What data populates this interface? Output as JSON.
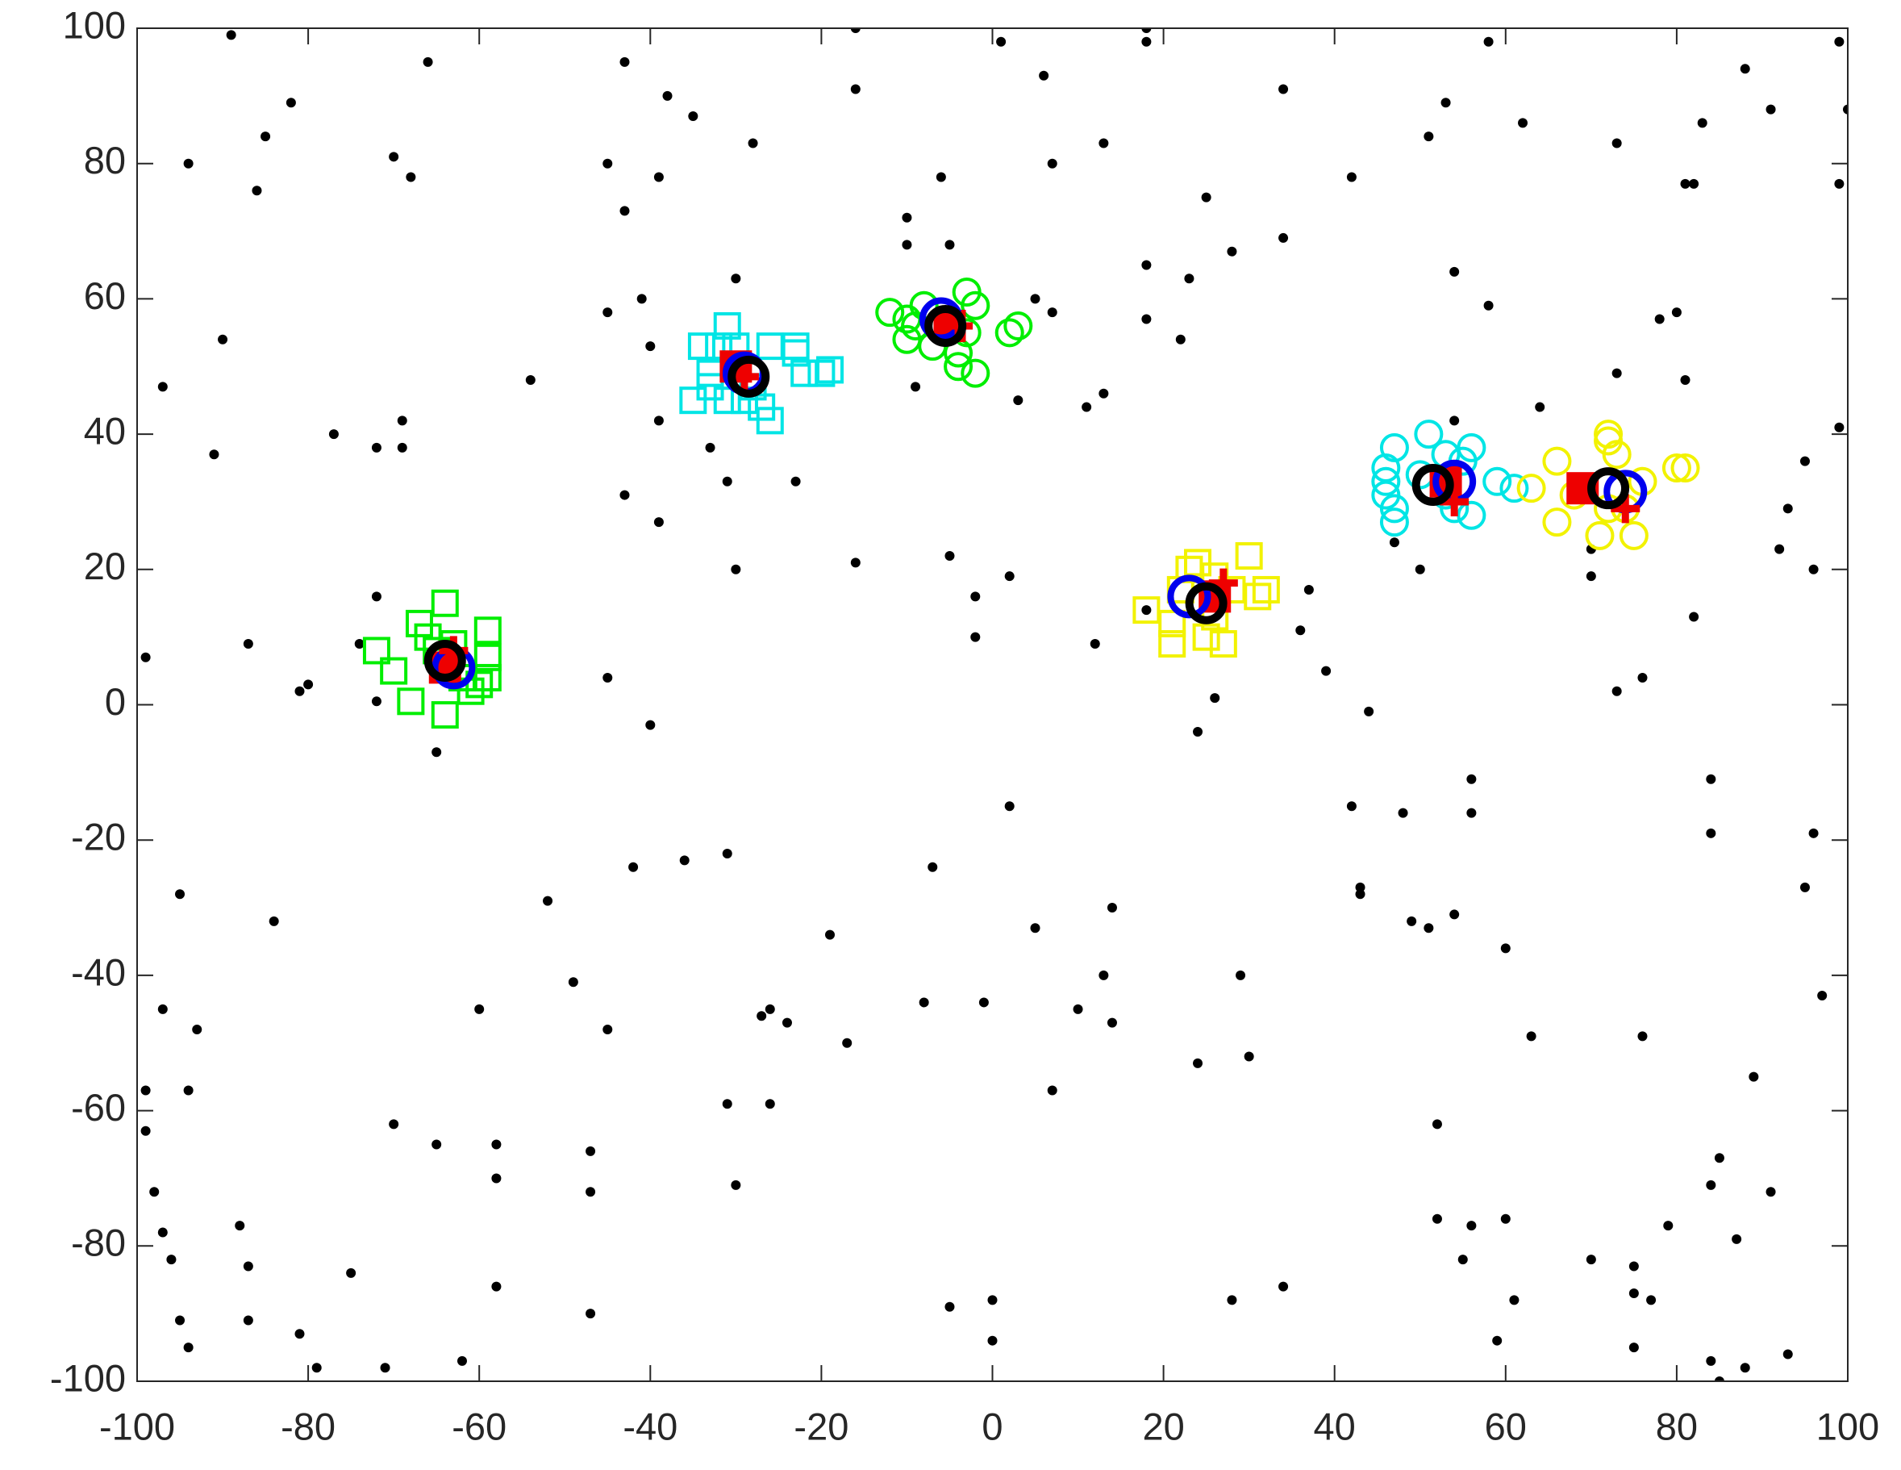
{
  "chart_data": {
    "type": "scatter",
    "xlim": [
      -100,
      100
    ],
    "ylim": [
      -100,
      100
    ],
    "xticks": [
      -100,
      -80,
      -60,
      -40,
      -20,
      0,
      20,
      40,
      60,
      80,
      100
    ],
    "yticks": [
      -100,
      -80,
      -60,
      -40,
      -20,
      0,
      20,
      40,
      60,
      80,
      100
    ],
    "grid": false,
    "series": [
      {
        "color": "#000000",
        "marker": "dot",
        "x": [
          -89,
          -66,
          -94,
          -82,
          -85,
          -86,
          -70,
          -68,
          -90,
          -97,
          -91,
          -77,
          -72,
          -69,
          -69,
          -99,
          -72,
          -87,
          -81,
          -80,
          -74,
          -72,
          -65,
          -60,
          -58,
          -58,
          -58,
          -62,
          -65,
          -70,
          -75,
          -71,
          -79,
          -81,
          -87,
          -87,
          -88,
          -94,
          -95,
          -96,
          -97,
          -98,
          -99,
          -99,
          -94,
          -93,
          -97,
          -95,
          -84,
          -45,
          -43,
          -38,
          -35,
          -43,
          -39,
          -28,
          -41,
          -45,
          -40,
          -39,
          -43,
          -39,
          -33,
          -31,
          -30,
          -30,
          -54,
          -45,
          -40,
          -42,
          -36,
          -31,
          -52,
          -49,
          -45,
          -47,
          -47,
          -47,
          -31,
          -30,
          -26,
          -26,
          -27,
          -24,
          -19,
          -17,
          -16,
          -23,
          -16,
          -16,
          -10,
          -10,
          -6,
          -5,
          1,
          6,
          7,
          13,
          18,
          18,
          25,
          18,
          18,
          23,
          22,
          28,
          11,
          13,
          5,
          7,
          3,
          -9,
          -5,
          -2,
          -2,
          2,
          12,
          -5,
          0,
          0,
          -1,
          -8,
          -7,
          2,
          5,
          7,
          10,
          13,
          14,
          14,
          18,
          24,
          26,
          28,
          29,
          30,
          24,
          34,
          34,
          34,
          36,
          37,
          39,
          42,
          42,
          43,
          43,
          44,
          48,
          49,
          51,
          54,
          56,
          56,
          52,
          52,
          55,
          56,
          60,
          61,
          60,
          59,
          63,
          70,
          75,
          75,
          77,
          75,
          76,
          79,
          84,
          85,
          87,
          89,
          91,
          93,
          84,
          85,
          88,
          84,
          84,
          95,
          96,
          97,
          96,
          93,
          92,
          95,
          99,
          99,
          99,
          100,
          91,
          88,
          83,
          81,
          82,
          80,
          81,
          78,
          82,
          76,
          73,
          73,
          73,
          62,
          58,
          58,
          54,
          53,
          51,
          50,
          47,
          54,
          70,
          70,
          64
        ],
        "y": [
          99,
          95,
          80,
          89,
          84,
          76,
          81,
          78,
          54,
          47,
          37,
          40,
          38,
          38,
          42,
          7,
          16,
          9,
          2,
          3,
          9,
          0.5,
          -7,
          -45,
          -65,
          -70,
          -86,
          -97,
          -65,
          -62,
          -84,
          -98,
          -98,
          -93,
          -91,
          -83,
          -77,
          -95,
          -91,
          -82,
          -78,
          -72,
          -63,
          -57,
          -57,
          -48,
          -45,
          -28,
          -32,
          80,
          95,
          90,
          87,
          73,
          78,
          83,
          60,
          58,
          53,
          42,
          31,
          27,
          38,
          33,
          63,
          20,
          48,
          4,
          -3,
          -24,
          -23,
          -22,
          -29,
          -41,
          -48,
          -66,
          -72,
          -90,
          -59,
          -71,
          -59,
          -45,
          -46,
          -47,
          -34,
          -50,
          21,
          33,
          91,
          100,
          72,
          68,
          78,
          68,
          98,
          93,
          80,
          83,
          100,
          98,
          75,
          65,
          57,
          63,
          54,
          67,
          44,
          46,
          60,
          58,
          45,
          47,
          22,
          16,
          10,
          19,
          9,
          -89,
          -88,
          -94,
          -44,
          -44,
          -24,
          -15,
          -33,
          -57,
          -45,
          -40,
          -30,
          -47,
          14,
          -4,
          1,
          -88,
          -40,
          -52,
          -53,
          -86,
          91,
          69,
          11,
          17,
          5,
          78,
          -15,
          -27,
          -28,
          -1,
          -16,
          -32,
          -33,
          -31,
          -11,
          -16,
          -62,
          -76,
          -82,
          -77,
          -76,
          -88,
          -36,
          -94,
          -49,
          -82,
          -83,
          -87,
          -88,
          -95,
          -49,
          -77,
          -71,
          -67,
          -79,
          -55,
          -72,
          -96,
          -97,
          -100,
          -98,
          -19,
          -11,
          -27,
          -19,
          -43,
          20,
          29,
          23,
          36,
          41,
          77,
          98,
          88,
          88,
          94,
          86,
          77,
          77,
          58,
          48,
          57,
          13,
          4,
          2,
          49,
          83,
          86,
          98,
          59,
          64,
          89,
          84,
          20,
          24,
          42,
          19,
          23,
          44
        ]
      },
      {
        "color": "#00ee00",
        "marker": "square",
        "x": [
          -72,
          -70,
          -67,
          -66,
          -64,
          -68,
          -64,
          -59,
          -59,
          -59,
          -60,
          -61,
          -65,
          -63,
          -62
        ],
        "y": [
          8,
          5,
          12,
          10,
          15,
          0.5,
          -1.5,
          11,
          7,
          4,
          3,
          2,
          8,
          9,
          4
        ]
      },
      {
        "color": "#00e5e5",
        "marker": "square",
        "x": [
          -34,
          -32,
          -31,
          -30,
          -26,
          -23,
          -23,
          -22,
          -20,
          -19,
          -35,
          -33,
          -31,
          -29,
          -27,
          -26,
          -33,
          -28
        ],
        "y": [
          53,
          53,
          56,
          53,
          53,
          53,
          52,
          49,
          49,
          49.5,
          45,
          47,
          45,
          45,
          44,
          42,
          49,
          47
        ]
      },
      {
        "color": "#00ee00",
        "marker": "circle",
        "x": [
          -12,
          -10,
          -10,
          -8,
          -7,
          -4,
          -3,
          -2,
          -3,
          -2,
          2,
          3,
          -4,
          -9
        ],
        "y": [
          58,
          57,
          54,
          59,
          53,
          52,
          61,
          59,
          55,
          49,
          55,
          56,
          50,
          56
        ]
      },
      {
        "color": "#f2f200",
        "marker": "square",
        "x": [
          18,
          21,
          21,
          23,
          24,
          22,
          26,
          27,
          30,
          31,
          32,
          28,
          25,
          26
        ],
        "y": [
          14,
          12,
          9,
          20,
          21,
          17,
          13,
          9,
          22,
          16,
          17,
          17,
          10,
          19
        ]
      },
      {
        "color": "#00e5e5",
        "marker": "circle",
        "x": [
          47,
          46,
          46,
          46,
          47,
          47,
          51,
          53,
          56,
          55,
          56,
          54,
          59,
          61,
          50,
          53
        ],
        "y": [
          38,
          35,
          33,
          31,
          29,
          27,
          40,
          37,
          38,
          36,
          28,
          29,
          33,
          32,
          34,
          31
        ]
      },
      {
        "color": "#f2f200",
        "marker": "circle",
        "x": [
          63,
          66,
          66,
          69,
          72,
          72,
          73,
          72,
          71,
          75,
          76,
          80,
          81,
          74,
          68
        ],
        "y": [
          32,
          36,
          27,
          32,
          39,
          40,
          37,
          29,
          25,
          25,
          33,
          35,
          35,
          29,
          31
        ]
      },
      {
        "color": "#ee0000",
        "marker": "filled-square",
        "x": [
          -64,
          -30,
          -5,
          26,
          53,
          69
        ],
        "y": [
          5.5,
          50,
          56,
          16,
          33,
          32
        ]
      },
      {
        "color": "#0000ee",
        "marker": "big-circle",
        "x": [
          -63,
          -29,
          -6,
          23,
          54,
          74
        ],
        "y": [
          5.5,
          49,
          57,
          16,
          33,
          31.5
        ]
      },
      {
        "color": "#ee0000",
        "marker": "plus",
        "x": [
          -63,
          -29,
          -4,
          27,
          54,
          74
        ],
        "y": [
          8,
          48.5,
          56,
          18,
          30,
          29
        ]
      },
      {
        "color": "#000000",
        "marker": "ring",
        "x": [
          -64,
          -28.5,
          -5.5,
          25,
          51.5,
          72
        ],
        "y": [
          6.5,
          48.5,
          56,
          15,
          32.5,
          32
        ]
      }
    ]
  }
}
